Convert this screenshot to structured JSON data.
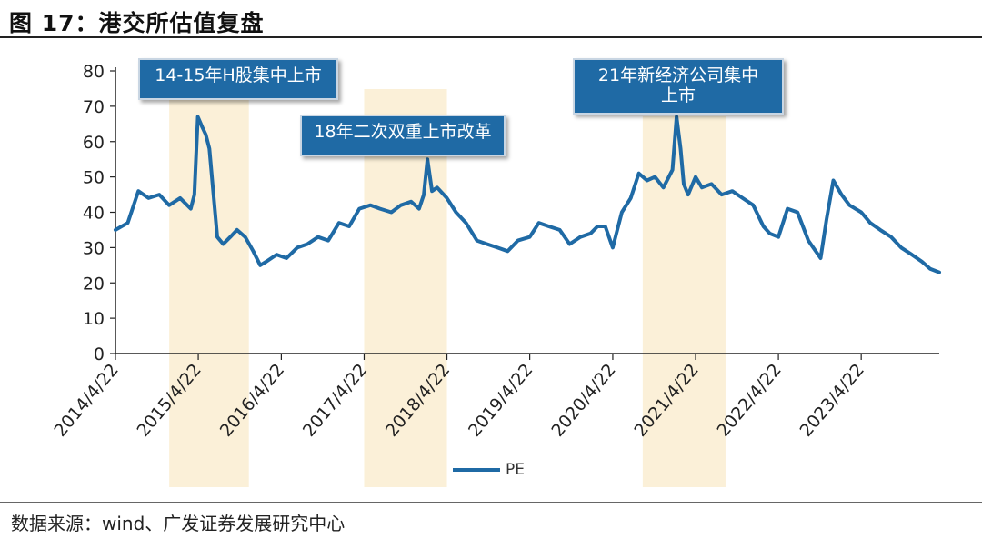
{
  "figure_title": "图 17：港交所估值复盘",
  "source": "数据来源：wind、广发证券发展研究中心",
  "colors": {
    "line": "#1f6aa5",
    "band": "#fbf0d8",
    "callout": "#1f6aa5"
  },
  "chart_data": {
    "type": "line",
    "title": "",
    "xlabel": "",
    "ylabel": "",
    "ylim": [
      0,
      80
    ],
    "yticks": [
      0,
      10,
      20,
      30,
      40,
      50,
      60,
      70,
      80
    ],
    "xlim": [
      "2014-04-22",
      "2024-03-31"
    ],
    "xticks": [
      "2014/4/22",
      "2015/4/22",
      "2016/4/22",
      "2017/4/22",
      "2018/4/22",
      "2019/4/22",
      "2020/4/22",
      "2021/4/22",
      "2022/4/22",
      "2023/4/22"
    ],
    "series": [
      {
        "name": "PE",
        "x": [
          "2014-04-22",
          "2014-06-15",
          "2014-08-01",
          "2014-09-15",
          "2014-11-01",
          "2014-12-15",
          "2015-02-01",
          "2015-03-20",
          "2015-04-05",
          "2015-04-20",
          "2015-05-10",
          "2015-05-25",
          "2015-06-10",
          "2015-06-28",
          "2015-07-15",
          "2015-08-10",
          "2015-09-10",
          "2015-10-10",
          "2015-11-15",
          "2015-12-20",
          "2016-01-20",
          "2016-02-15",
          "2016-04-01",
          "2016-05-15",
          "2016-07-01",
          "2016-08-15",
          "2016-10-01",
          "2016-11-15",
          "2017-01-01",
          "2017-02-15",
          "2017-04-01",
          "2017-05-20",
          "2017-07-01",
          "2017-08-20",
          "2017-10-01",
          "2017-11-15",
          "2017-12-20",
          "2018-01-10",
          "2018-01-26",
          "2018-02-15",
          "2018-03-10",
          "2018-04-22",
          "2018-06-01",
          "2018-07-15",
          "2018-09-01",
          "2018-10-15",
          "2018-12-01",
          "2019-01-15",
          "2019-03-01",
          "2019-04-22",
          "2019-06-01",
          "2019-07-15",
          "2019-09-01",
          "2019-10-15",
          "2019-12-01",
          "2020-01-15",
          "2020-02-15",
          "2020-03-20",
          "2020-04-22",
          "2020-06-01",
          "2020-07-10",
          "2020-08-15",
          "2020-09-20",
          "2020-10-25",
          "2020-12-01",
          "2021-01-10",
          "2021-01-28",
          "2021-02-15",
          "2021-03-01",
          "2021-03-20",
          "2021-04-22",
          "2021-05-20",
          "2021-07-01",
          "2021-08-15",
          "2021-10-01",
          "2021-11-15",
          "2022-01-01",
          "2022-02-15",
          "2022-03-15",
          "2022-04-22",
          "2022-06-01",
          "2022-07-15",
          "2022-09-01",
          "2022-10-25",
          "2022-11-20",
          "2022-12-20",
          "2023-01-25",
          "2023-03-01",
          "2023-04-22",
          "2023-06-01",
          "2023-07-15",
          "2023-09-01",
          "2023-10-15",
          "2023-12-01",
          "2024-01-15",
          "2024-02-20",
          "2024-03-31"
        ],
        "values": [
          35,
          37,
          46,
          44,
          45,
          42,
          44,
          41,
          45,
          67,
          64,
          62,
          58,
          45,
          33,
          31,
          33,
          35,
          33,
          29,
          25,
          26,
          28,
          27,
          30,
          31,
          33,
          32,
          37,
          36,
          41,
          42,
          41,
          40,
          42,
          43,
          41,
          45,
          55,
          46,
          47,
          44,
          40,
          37,
          32,
          31,
          30,
          29,
          32,
          33,
          37,
          36,
          35,
          31,
          33,
          34,
          36,
          36,
          30,
          40,
          44,
          51,
          49,
          50,
          47,
          52,
          67,
          58,
          48,
          45,
          50,
          47,
          48,
          45,
          46,
          44,
          42,
          36,
          34,
          33,
          41,
          40,
          32,
          27,
          38,
          49,
          45,
          42,
          40,
          37,
          35,
          33,
          30,
          28,
          26,
          24,
          23
        ]
      }
    ],
    "highlight_periods": [
      {
        "start": "2014-12-15",
        "end": "2015-12-01"
      },
      {
        "start": "2017-04-22",
        "end": "2018-04-22"
      },
      {
        "start": "2020-09-01",
        "end": "2021-09-01"
      }
    ],
    "annotations": [
      {
        "text": "14-15年H股集中上市"
      },
      {
        "text": "18年二次双重上市改革"
      },
      {
        "text": "21年新经济公司集中上市"
      }
    ],
    "legend": {
      "position": "bottom",
      "entries": [
        "PE"
      ]
    }
  }
}
